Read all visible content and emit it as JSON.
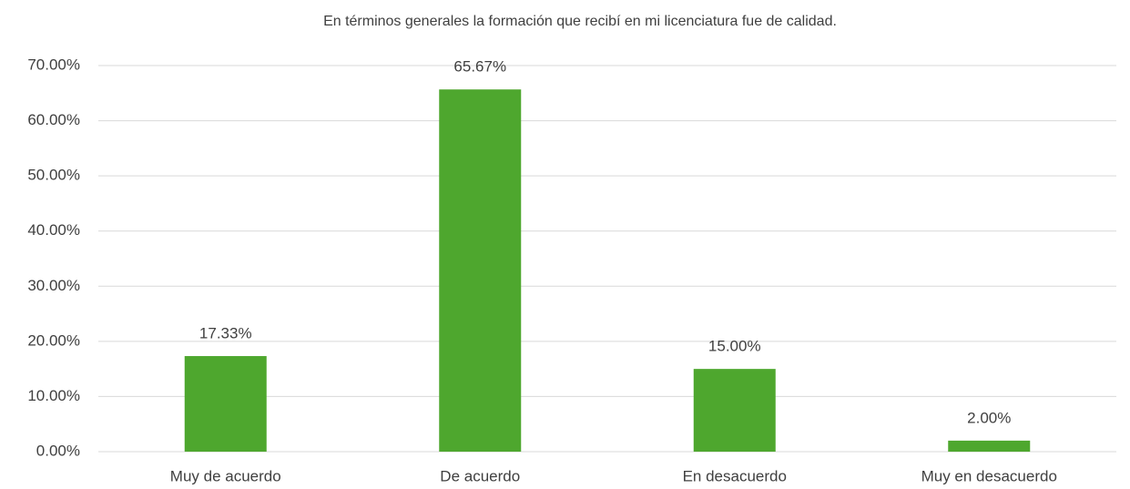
{
  "chart_data": {
    "type": "bar",
    "title": "En términos generales la formación que recibí en mi licenciatura fue de calidad.",
    "categories": [
      "Muy de acuerdo",
      "De acuerdo",
      "En desacuerdo",
      "Muy en desacuerdo"
    ],
    "values": [
      17.33,
      65.67,
      15.0,
      2.0
    ],
    "value_labels": [
      "17.33%",
      "65.67%",
      "15.00%",
      "2.00%"
    ],
    "color": "#4ea72e",
    "ylim": [
      0,
      70
    ],
    "yticks": [
      {
        "value": 0,
        "label": "0.00%"
      },
      {
        "value": 10,
        "label": "10.00%"
      },
      {
        "value": 20,
        "label": "20.00%"
      },
      {
        "value": 30,
        "label": "30.00%"
      },
      {
        "value": 40,
        "label": "40.00%"
      },
      {
        "value": 50,
        "label": "50.00%"
      },
      {
        "value": 60,
        "label": "60.00%"
      },
      {
        "value": 70,
        "label": "70.00%"
      }
    ],
    "grid": true
  }
}
